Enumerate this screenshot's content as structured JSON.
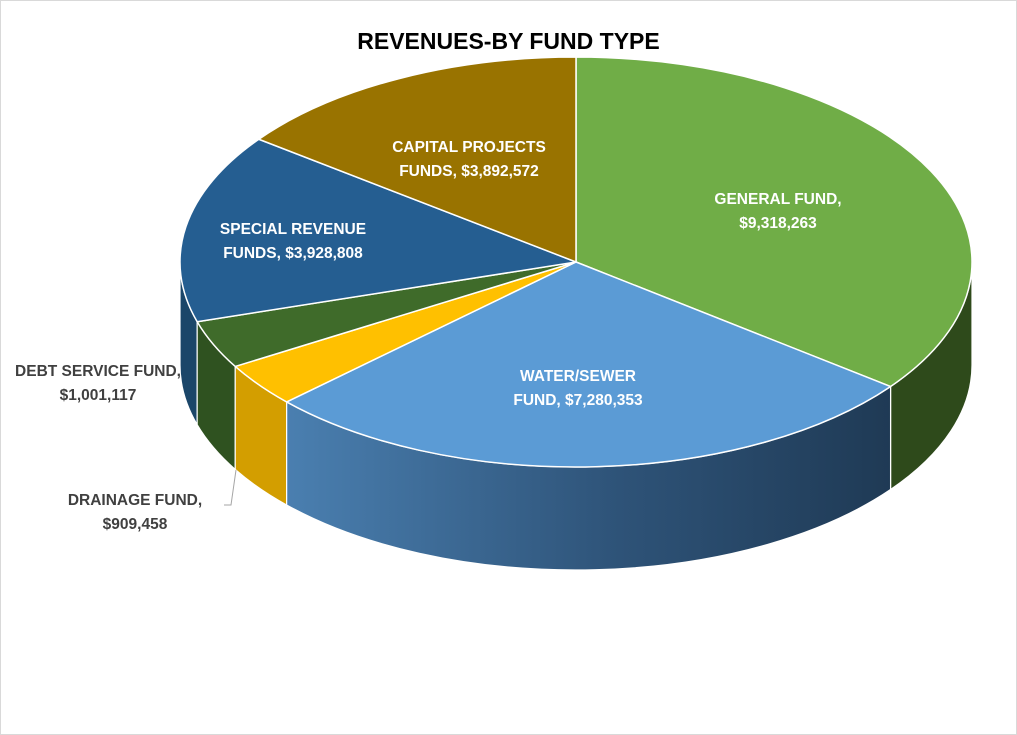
{
  "chart_data": {
    "type": "pie",
    "title": "REVENUES-BY FUND TYPE",
    "slices": [
      {
        "name": "GENERAL FUND",
        "value": 9318263,
        "label_lines": [
          "GENERAL FUND,",
          "$9,318,263"
        ],
        "color": "#70AD47",
        "side_color": "#2E4A1B",
        "label_color": "#FFFFFF"
      },
      {
        "name": "WATER/SEWER FUND",
        "value": 7280353,
        "label_lines": [
          "WATER/SEWER",
          "FUND,  $7,280,353"
        ],
        "color": "#5B9BD5",
        "side_color": "#2B4D72",
        "label_color": "#FFFFFF"
      },
      {
        "name": "DRAINAGE FUND",
        "value": 909458,
        "label_lines": [
          "DRAINAGE FUND,",
          "$909,458"
        ],
        "color": "#FFC000",
        "side_color": "#D39E00",
        "label_color": "#404040"
      },
      {
        "name": "DEBT SERVICE FUND",
        "value": 1001117,
        "label_lines": [
          "DEBT SERVICE FUND,",
          "$1,001,117"
        ],
        "color": "#3F6B2A",
        "side_color": "#2F5220",
        "label_color": "#404040"
      },
      {
        "name": "SPECIAL REVENUE FUNDS",
        "value": 3928808,
        "label_lines": [
          "SPECIAL REVENUE",
          "FUNDS,  $3,928,808"
        ],
        "color": "#255E91",
        "side_color": "#1B4669",
        "label_color": "#FFFFFF"
      },
      {
        "name": "CAPITAL PROJECTS FUNDS",
        "value": 3892572,
        "label_lines": [
          "CAPITAL PROJECTS",
          "FUNDS,  $3,892,572"
        ],
        "color": "#997300",
        "side_color": "#6E5300",
        "label_color": "#FFFFFF"
      }
    ],
    "start_angle_deg": -90,
    "direction": "clockwise",
    "style": "3d-pie",
    "legend": "none"
  }
}
